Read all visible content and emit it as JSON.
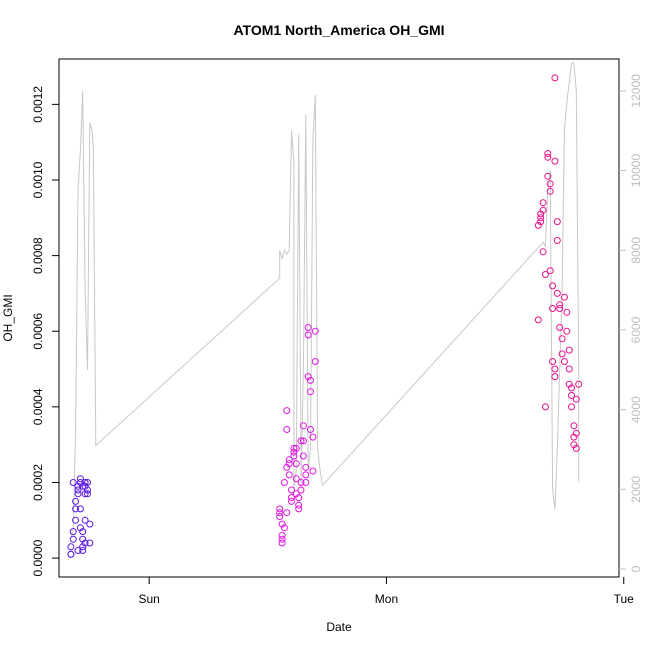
{
  "chart_data": {
    "type": "scatter",
    "title": "ATOM1 North_America OH_GMI",
    "xlabel": "Date",
    "ylabel": "OH_GMI",
    "x_ticks": [
      "Sun",
      "Mon",
      "Tue"
    ],
    "x_tick_values": [
      0.0,
      1.0,
      2.0
    ],
    "xlim": [
      -0.38,
      1.98
    ],
    "ylim": [
      -5e-05,
      0.00132
    ],
    "y_ticks": [
      "0.0000",
      "0.0002",
      "0.0004",
      "0.0006",
      "0.0008",
      "0.0010",
      "0.0012"
    ],
    "y_tick_values": [
      0.0,
      0.0002,
      0.0004,
      0.0006,
      0.0008,
      0.001,
      0.0012
    ],
    "y2lim": [
      -200,
      12800
    ],
    "y2_ticks": [
      "0",
      "2000",
      "4000",
      "6000",
      "8000",
      "10000",
      "12000"
    ],
    "y2_tick_values": [
      0,
      2000,
      4000,
      6000,
      8000,
      10000,
      12000
    ],
    "grid": false,
    "colors": {
      "frame": "#000000",
      "altitude_line": "#c8c8c8",
      "right_axis": "#bebebe",
      "low_points": "#5a18e8",
      "mid_points": "#e018e0",
      "high_points": "#e8108c"
    },
    "series": [
      {
        "kind": "points",
        "points": [
          [
            -0.33,
            1e-05
          ],
          [
            -0.33,
            3e-05
          ],
          [
            -0.32,
            5e-05
          ],
          [
            -0.32,
            7e-05
          ],
          [
            -0.31,
            0.0001
          ],
          [
            -0.31,
            0.00013
          ],
          [
            -0.31,
            0.00015
          ],
          [
            -0.3,
            0.00017
          ],
          [
            -0.3,
            0.00018
          ],
          [
            -0.3,
            0.00019
          ],
          [
            -0.29,
            0.00021
          ],
          [
            -0.29,
            0.0002
          ],
          [
            -0.29,
            0.00013
          ],
          [
            -0.29,
            8e-05
          ],
          [
            -0.28,
            7e-05
          ],
          [
            -0.28,
            5e-05
          ],
          [
            -0.28,
            3e-05
          ],
          [
            -0.27,
            0.0001
          ],
          [
            -0.27,
            0.00019
          ],
          [
            -0.27,
            0.0002
          ],
          [
            -0.26,
            0.00018
          ],
          [
            -0.26,
            0.00017
          ],
          [
            -0.25,
            9e-05
          ],
          [
            -0.25,
            4e-05
          ],
          [
            -0.26,
            0.0002
          ],
          [
            -0.28,
            2e-05
          ],
          [
            -0.27,
            4e-05
          ],
          [
            -0.33,
            1e-05
          ],
          [
            -0.3,
            2e-05
          ],
          [
            -0.27,
            0.00017
          ],
          [
            -0.28,
            0.00019
          ],
          [
            -0.32,
            0.0002
          ],
          [
            0.55,
            0.00013
          ],
          [
            0.55,
            0.00012
          ],
          [
            0.55,
            0.00011
          ],
          [
            0.56,
            6e-05
          ],
          [
            0.56,
            5e-05
          ],
          [
            0.56,
            9e-05
          ],
          [
            0.57,
            8e-05
          ],
          [
            0.57,
            0.0002
          ],
          [
            0.58,
            0.00024
          ],
          [
            0.58,
            0.00034
          ],
          [
            0.58,
            0.00039
          ],
          [
            0.59,
            0.00025
          ],
          [
            0.59,
            0.00026
          ],
          [
            0.59,
            0.00022
          ],
          [
            0.6,
            0.00018
          ],
          [
            0.6,
            0.00016
          ],
          [
            0.6,
            0.00015
          ],
          [
            0.61,
            0.00028
          ],
          [
            0.61,
            0.00029
          ],
          [
            0.61,
            0.00027
          ],
          [
            0.62,
            0.00025
          ],
          [
            0.62,
            0.00021
          ],
          [
            0.62,
            0.00017
          ],
          [
            0.63,
            0.00016
          ],
          [
            0.63,
            0.00014
          ],
          [
            0.63,
            0.00013
          ],
          [
            0.64,
            0.00018
          ],
          [
            0.64,
            0.0002
          ],
          [
            0.65,
            0.00031
          ],
          [
            0.65,
            0.00035
          ],
          [
            0.65,
            0.00027
          ],
          [
            0.66,
            0.00024
          ],
          [
            0.66,
            0.00022
          ],
          [
            0.66,
            0.0002
          ],
          [
            0.67,
            0.00061
          ],
          [
            0.67,
            0.00059
          ],
          [
            0.67,
            0.00048
          ],
          [
            0.68,
            0.00047
          ],
          [
            0.68,
            0.00044
          ],
          [
            0.68,
            0.00034
          ],
          [
            0.69,
            0.00032
          ],
          [
            0.69,
            0.00023
          ],
          [
            0.7,
            0.00052
          ],
          [
            0.7,
            0.0006
          ],
          [
            0.56,
            4e-05
          ],
          [
            0.58,
            0.00012
          ],
          [
            0.62,
            0.00029
          ],
          [
            0.64,
            0.00031
          ],
          [
            1.64,
            0.00063
          ],
          [
            1.64,
            0.00088
          ],
          [
            1.65,
            0.00089
          ],
          [
            1.65,
            0.00091
          ],
          [
            1.66,
            0.00092
          ],
          [
            1.66,
            0.00094
          ],
          [
            1.66,
            0.00081
          ],
          [
            1.67,
            0.00075
          ],
          [
            1.67,
            0.0004
          ],
          [
            1.68,
            0.00106
          ],
          [
            1.68,
            0.00107
          ],
          [
            1.68,
            0.00101
          ],
          [
            1.69,
            0.00099
          ],
          [
            1.69,
            0.00097
          ],
          [
            1.69,
            0.00076
          ],
          [
            1.7,
            0.00072
          ],
          [
            1.7,
            0.00066
          ],
          [
            1.7,
            0.00052
          ],
          [
            1.71,
            0.0005
          ],
          [
            1.71,
            0.00048
          ],
          [
            1.71,
            0.00105
          ],
          [
            1.72,
            0.00089
          ],
          [
            1.72,
            0.00084
          ],
          [
            1.72,
            0.0007
          ],
          [
            1.73,
            0.00067
          ],
          [
            1.73,
            0.00066
          ],
          [
            1.73,
            0.00061
          ],
          [
            1.74,
            0.00058
          ],
          [
            1.74,
            0.00054
          ],
          [
            1.75,
            0.00052
          ],
          [
            1.75,
            0.00069
          ],
          [
            1.76,
            0.00065
          ],
          [
            1.76,
            0.0006
          ],
          [
            1.77,
            0.00055
          ],
          [
            1.77,
            0.0005
          ],
          [
            1.77,
            0.00046
          ],
          [
            1.78,
            0.00045
          ],
          [
            1.78,
            0.00043
          ],
          [
            1.78,
            0.0004
          ],
          [
            1.79,
            0.00035
          ],
          [
            1.79,
            0.00032
          ],
          [
            1.79,
            0.0003
          ],
          [
            1.8,
            0.00029
          ],
          [
            1.8,
            0.00033
          ],
          [
            1.8,
            0.00042
          ],
          [
            1.81,
            0.00046
          ],
          [
            1.71,
            0.00127
          ],
          [
            1.65,
            0.0009
          ]
        ]
      },
      {
        "kind": "line",
        "axis": "right",
        "points": [
          [
            -0.33,
            800
          ],
          [
            -0.32,
            1000
          ],
          [
            -0.31,
            3500
          ],
          [
            -0.3,
            9500
          ],
          [
            -0.29,
            10500
          ],
          [
            -0.28,
            12000
          ],
          [
            -0.27,
            7000
          ],
          [
            -0.26,
            5000
          ],
          [
            -0.25,
            11200
          ],
          [
            -0.24,
            11000
          ],
          [
            -0.235,
            10500
          ],
          [
            -0.225,
            3100
          ],
          [
            0.55,
            7300
          ],
          [
            0.55,
            8000
          ],
          [
            0.56,
            7800
          ],
          [
            0.57,
            8000
          ],
          [
            0.58,
            7900
          ],
          [
            0.59,
            8000
          ],
          [
            0.6,
            11000
          ],
          [
            0.61,
            10200
          ],
          [
            0.61,
            2000
          ],
          [
            0.62,
            2500
          ],
          [
            0.63,
            10900
          ],
          [
            0.64,
            3000
          ],
          [
            0.64,
            2000
          ],
          [
            0.65,
            5000
          ],
          [
            0.66,
            11400
          ],
          [
            0.67,
            2500
          ],
          [
            0.68,
            3000
          ],
          [
            0.69,
            10800
          ],
          [
            0.7,
            11900
          ],
          [
            0.71,
            3000
          ],
          [
            0.72,
            2500
          ],
          [
            0.73,
            2100
          ],
          [
            1.66,
            8200
          ],
          [
            1.67,
            8100
          ],
          [
            1.68,
            9500
          ],
          [
            1.69,
            10000
          ],
          [
            1.7,
            2000
          ],
          [
            1.71,
            1500
          ],
          [
            1.72,
            3000
          ],
          [
            1.73,
            5000
          ],
          [
            1.74,
            7000
          ],
          [
            1.75,
            11000
          ],
          [
            1.76,
            11700
          ],
          [
            1.77,
            12200
          ],
          [
            1.78,
            12700
          ],
          [
            1.79,
            12700
          ],
          [
            1.8,
            12000
          ],
          [
            1.81,
            5000
          ],
          [
            1.81,
            2200
          ]
        ]
      }
    ]
  }
}
